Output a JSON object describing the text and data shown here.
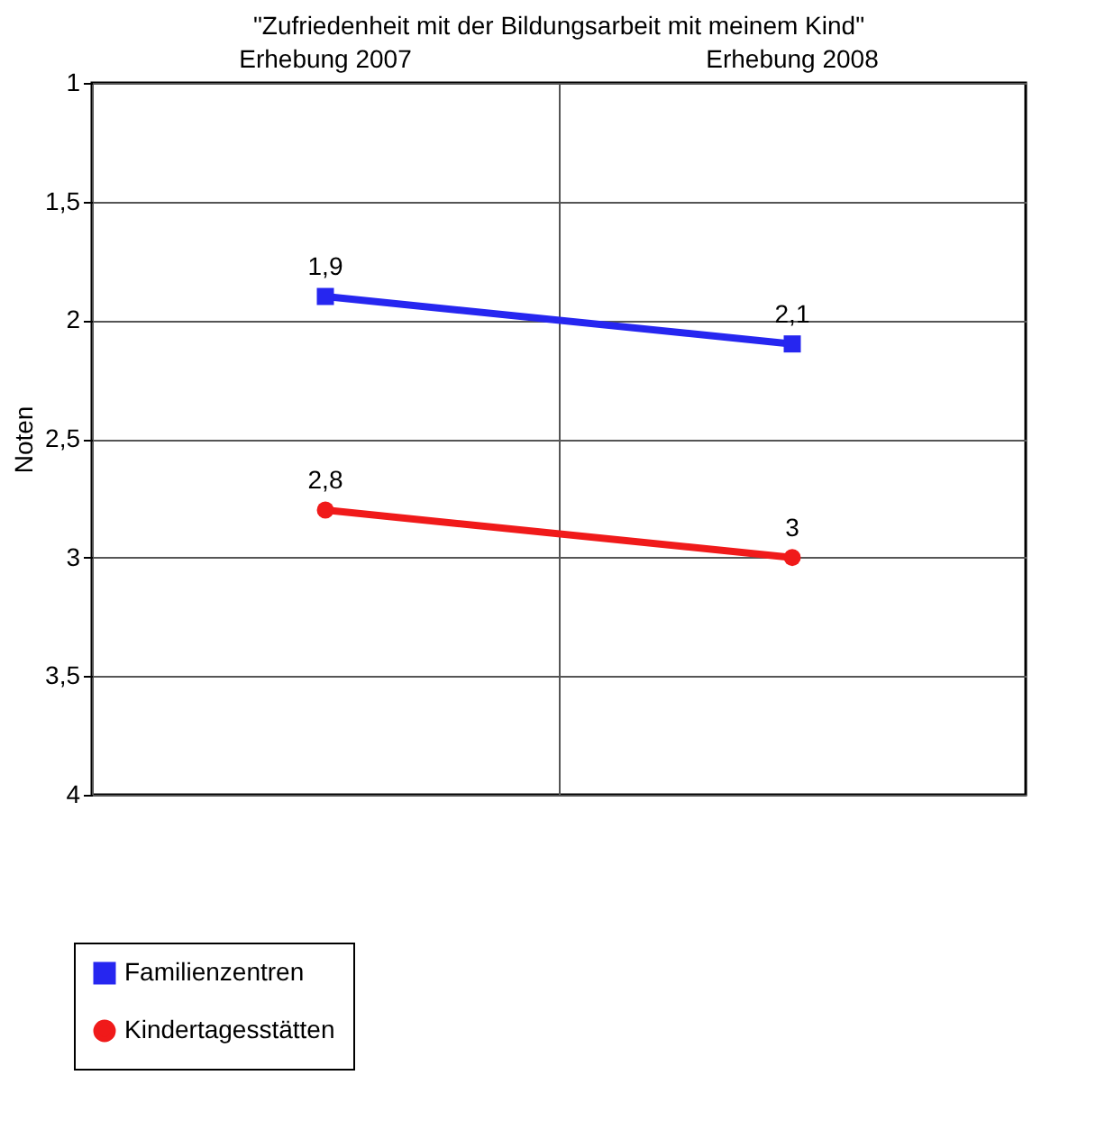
{
  "chart_data": {
    "type": "line",
    "title": "\"Zufriedenheit mit der Bildungsarbeit mit meinem Kind\"",
    "ylabel": "Noten",
    "categories": [
      "Erhebung 2007",
      "Erhebung 2008"
    ],
    "series": [
      {
        "name": "Familienzentren",
        "color": "#2626f0",
        "values": [
          1.9,
          2.1
        ],
        "value_labels": [
          "1,9",
          "2,1"
        ],
        "marker": "square"
      },
      {
        "name": "Kindertagesstätten",
        "color": "#f01a1a",
        "values": [
          2.8,
          3
        ],
        "value_labels": [
          "2,8",
          "3"
        ],
        "marker": "circle"
      }
    ],
    "ylim": [
      4,
      1
    ],
    "yticks": [
      1,
      {
        "value": 1.5,
        "label": "1,5"
      },
      2,
      {
        "value": 2.5,
        "label": "2,5"
      },
      3,
      {
        "value": 3.5,
        "label": "3,5"
      },
      4
    ],
    "grid": true,
    "legend": "bottom left",
    "line_style": "solid"
  }
}
